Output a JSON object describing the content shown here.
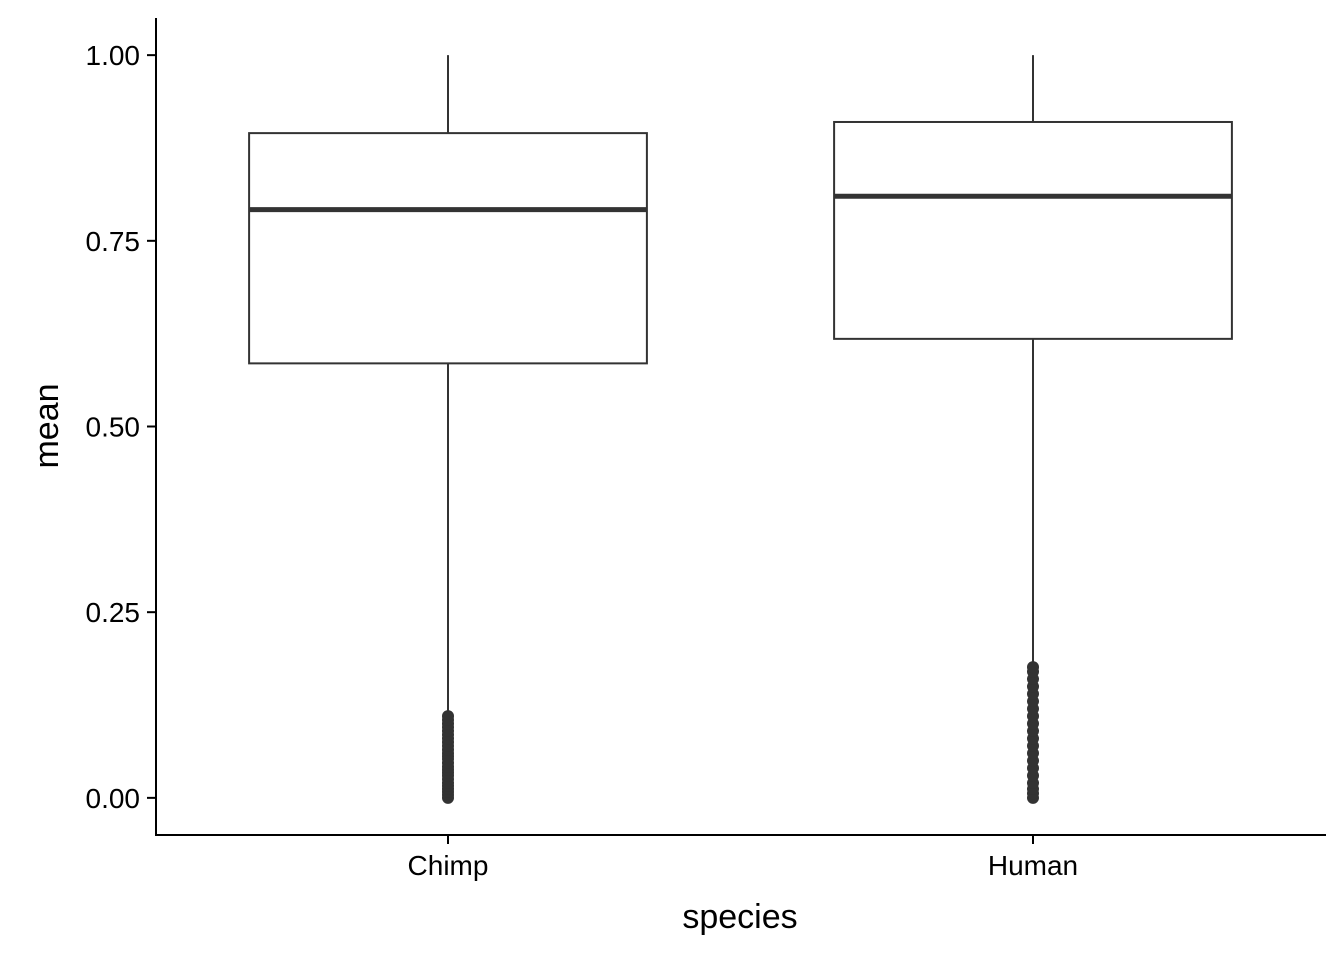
{
  "chart_data": {
    "type": "boxplot",
    "title": "",
    "xlabel": "species",
    "ylabel": "mean",
    "categories": [
      "Chimp",
      "Human"
    ],
    "ylim": [
      -0.05,
      1.05
    ],
    "yticks": [
      0.0,
      0.25,
      0.5,
      0.75,
      1.0
    ],
    "ytick_labels": [
      "0.00",
      "0.25",
      "0.50",
      "0.75",
      "1.00"
    ],
    "grid": false,
    "legend": "none",
    "colors": {
      "box_stroke": "#333333",
      "outlier": "#333333",
      "axis": "#000000",
      "background": "#ffffff"
    },
    "boxes": [
      {
        "category": "Chimp",
        "whisker_low": 0.115,
        "q1": 0.585,
        "median": 0.792,
        "q3": 0.895,
        "whisker_high": 1.0,
        "outliers": [
          0.0,
          0.004,
          0.008,
          0.012,
          0.016,
          0.02,
          0.025,
          0.03,
          0.034,
          0.038,
          0.042,
          0.047,
          0.052,
          0.056,
          0.06,
          0.065,
          0.07,
          0.075,
          0.08,
          0.085,
          0.09,
          0.095,
          0.1,
          0.105,
          0.11
        ]
      },
      {
        "category": "Human",
        "whisker_low": 0.18,
        "q1": 0.618,
        "median": 0.81,
        "q3": 0.91,
        "whisker_high": 1.0,
        "outliers": [
          0.0,
          0.006,
          0.012,
          0.02,
          0.03,
          0.04,
          0.05,
          0.06,
          0.07,
          0.08,
          0.09,
          0.1,
          0.11,
          0.12,
          0.13,
          0.14,
          0.15,
          0.16,
          0.17,
          0.176
        ]
      }
    ]
  }
}
